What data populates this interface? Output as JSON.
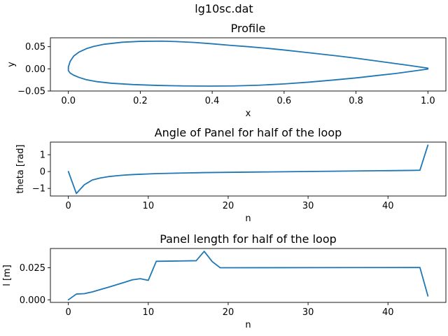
{
  "figure": {
    "suptitle": "lg10sc.dat"
  },
  "colors": {
    "line": "#1f77b4"
  },
  "chart_data": [
    {
      "type": "line",
      "title": "Profile",
      "xlabel": "x",
      "ylabel": "y",
      "xlim": [
        -0.05,
        1.05
      ],
      "ylim": [
        -0.05,
        0.07
      ],
      "xticks": [
        0.0,
        0.2,
        0.4,
        0.6,
        0.8,
        1.0
      ],
      "xtick_labels": [
        "0.0",
        "0.2",
        "0.4",
        "0.6",
        "0.8",
        "1.0"
      ],
      "yticks": [
        -0.05,
        0.0,
        0.05
      ],
      "ytick_labels": [
        "−0.05",
        "0.00",
        "0.05"
      ],
      "grid": false,
      "series": [
        {
          "x": [
            1.0,
            0.95,
            0.9,
            0.85,
            0.8,
            0.75,
            0.7,
            0.65,
            0.6,
            0.55,
            0.5,
            0.45,
            0.4,
            0.35,
            0.3,
            0.26,
            0.2,
            0.15,
            0.1,
            0.07,
            0.05,
            0.03,
            0.015,
            0.005,
            0.0,
            0.0,
            0.005,
            0.015,
            0.03,
            0.05,
            0.08,
            0.12,
            0.18,
            0.25,
            0.32,
            0.39,
            0.46,
            0.53,
            0.6,
            0.67,
            0.74,
            0.8,
            0.86,
            0.91,
            0.96,
            1.0
          ],
          "y": [
            0.0015,
            0.0075,
            0.013,
            0.0185,
            0.024,
            0.029,
            0.0335,
            0.038,
            0.0425,
            0.0465,
            0.05,
            0.053,
            0.0565,
            0.0595,
            0.0615,
            0.0625,
            0.062,
            0.06,
            0.0555,
            0.0505,
            0.0455,
            0.038,
            0.029,
            0.017,
            0.004,
            -0.004,
            -0.0095,
            -0.0145,
            -0.0195,
            -0.0245,
            -0.029,
            -0.0325,
            -0.0355,
            -0.0375,
            -0.0385,
            -0.039,
            -0.0385,
            -0.037,
            -0.034,
            -0.03,
            -0.025,
            -0.0205,
            -0.015,
            -0.0105,
            -0.005,
            -0.0005
          ]
        }
      ]
    },
    {
      "type": "line",
      "title": "Angle of Panel for half of the loop",
      "xlabel": "n",
      "ylabel": "theta [rad]",
      "xlim": [
        -2.25,
        47.25
      ],
      "ylim": [
        -1.45,
        1.75
      ],
      "xticks": [
        0,
        10,
        20,
        30,
        40
      ],
      "xtick_labels": [
        "0",
        "10",
        "20",
        "30",
        "40"
      ],
      "yticks": [
        -1,
        0,
        1
      ],
      "ytick_labels": [
        "−1",
        "0",
        "1"
      ],
      "grid": false,
      "series": [
        {
          "x": [
            0,
            1,
            2,
            3,
            4,
            5,
            6,
            7,
            8,
            9,
            10,
            11,
            12,
            13,
            14,
            15,
            16,
            17,
            18,
            19,
            20,
            21,
            22,
            23,
            24,
            25,
            26,
            27,
            28,
            29,
            30,
            31,
            32,
            33,
            34,
            35,
            36,
            37,
            38,
            39,
            40,
            41,
            42,
            43,
            44,
            45
          ],
          "y": [
            0.0,
            -1.3,
            -0.78,
            -0.5,
            -0.38,
            -0.3,
            -0.25,
            -0.21,
            -0.18,
            -0.16,
            -0.14,
            -0.12,
            -0.11,
            -0.1,
            -0.09,
            -0.08,
            -0.07,
            -0.06,
            -0.055,
            -0.05,
            -0.045,
            -0.04,
            -0.035,
            -0.03,
            -0.025,
            -0.02,
            -0.015,
            -0.01,
            -0.005,
            0.0,
            0.005,
            0.01,
            0.015,
            0.02,
            0.025,
            0.03,
            0.035,
            0.04,
            0.045,
            0.05,
            0.055,
            0.06,
            0.065,
            0.07,
            0.08,
            1.57
          ]
        }
      ]
    },
    {
      "type": "line",
      "title": "Panel length for half of the loop",
      "xlabel": "n",
      "ylabel": "l [m]",
      "xlim": [
        -2.25,
        47.25
      ],
      "ylim": [
        -0.002,
        0.04
      ],
      "xticks": [
        0,
        10,
        20,
        30,
        40
      ],
      "xtick_labels": [
        "0",
        "10",
        "20",
        "30",
        "40"
      ],
      "yticks": [
        0.0,
        0.025
      ],
      "ytick_labels": [
        "0.000",
        "0.025"
      ],
      "grid": false,
      "series": [
        {
          "x": [
            0,
            1,
            2,
            3,
            4,
            5,
            6,
            7,
            8,
            9,
            10,
            11,
            16,
            17,
            18,
            19,
            44,
            45
          ],
          "y": [
            0.0,
            0.0045,
            0.0048,
            0.0062,
            0.008,
            0.0098,
            0.0117,
            0.0136,
            0.0156,
            0.0165,
            0.0152,
            0.03,
            0.0305,
            0.0378,
            0.0298,
            0.025,
            0.0252,
            0.003
          ]
        }
      ]
    }
  ]
}
